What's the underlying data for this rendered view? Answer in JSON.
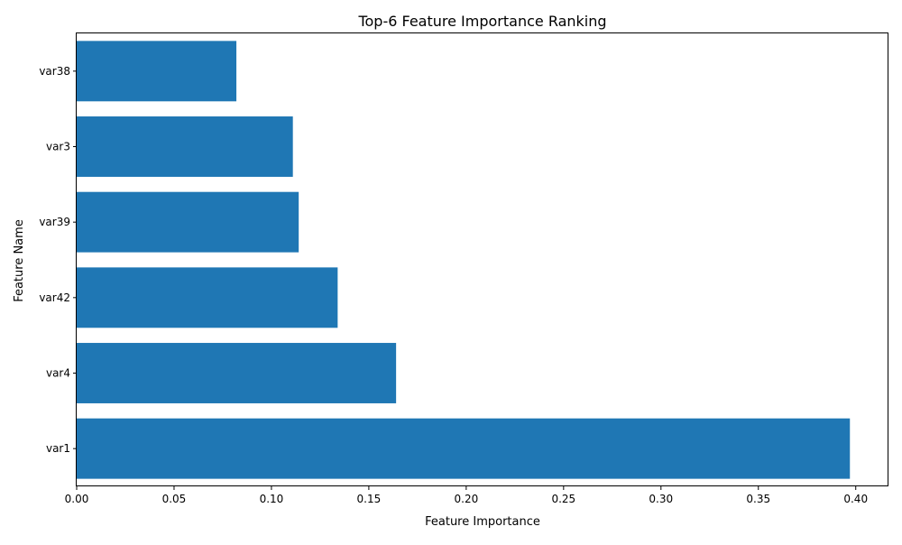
{
  "chart_data": {
    "type": "bar",
    "orientation": "horizontal",
    "title": "Top-6 Feature Importance Ranking",
    "xlabel": "Feature Importance",
    "ylabel": "Feature Name",
    "categories": [
      "var1",
      "var4",
      "var42",
      "var39",
      "var3",
      "var38"
    ],
    "values": [
      0.397,
      0.164,
      0.134,
      0.114,
      0.111,
      0.082
    ],
    "xlim": [
      0,
      0.4168
    ],
    "xticks": [
      "0.00",
      "0.05",
      "0.10",
      "0.15",
      "0.20",
      "0.25",
      "0.30",
      "0.35",
      "0.40"
    ],
    "grid": false,
    "bar_color": "#1f77b4"
  }
}
